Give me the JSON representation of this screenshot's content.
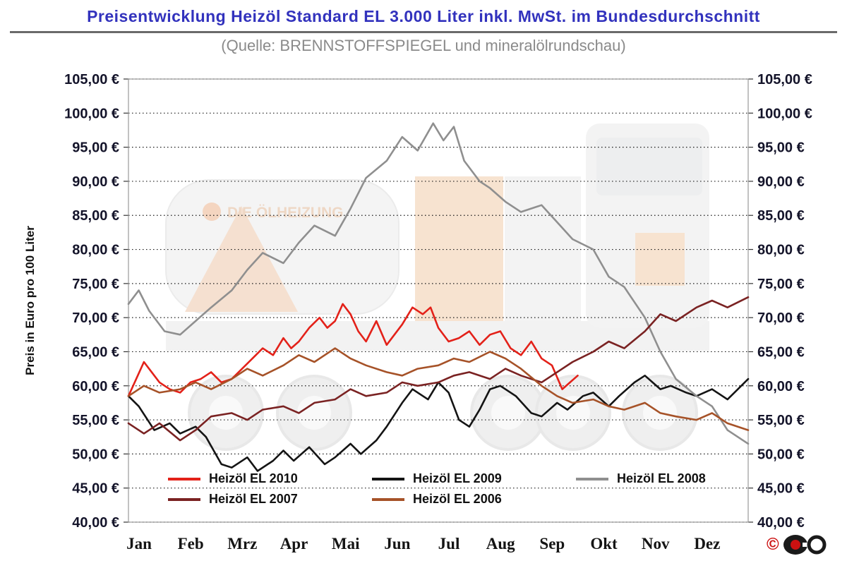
{
  "header": {
    "title": "Preisentwicklung Heizöl Standard EL 3.000 Liter inkl. MwSt. im Bundesdurchschnitt",
    "subtitle": "(Quelle: BRENNSTOFFSPIEGEL und mineralölrundschau)"
  },
  "watermark": {
    "text": "DIE ÖLHEIZUNG"
  },
  "chart_data": {
    "type": "line",
    "title": "Preisentwicklung Heizöl Standard EL 3.000 Liter inkl. MwSt. im Bundesdurchschnitt",
    "xlabel": "",
    "ylabel": "Preis in Euro pro 100 Liter",
    "ylim": [
      40,
      105
    ],
    "grid": "horizontal-dotted",
    "legend_position": "bottom-inside",
    "categories": [
      "Jan",
      "Feb",
      "Mrz",
      "Apr",
      "Mai",
      "Jun",
      "Jul",
      "Aug",
      "Sep",
      "Okt",
      "Nov",
      "Dez"
    ],
    "yticks": [
      40,
      45,
      50,
      55,
      60,
      65,
      70,
      75,
      80,
      85,
      90,
      95,
      100,
      105
    ],
    "ytick_labels": [
      "40,00 €",
      "45,00 €",
      "50,00 €",
      "55,00 €",
      "60,00 €",
      "65,00 €",
      "70,00 €",
      "75,00 €",
      "80,00 €",
      "85,00 €",
      "90,00 €",
      "95,00 €",
      "100,00 €",
      "105,00 €"
    ],
    "series": [
      {
        "name": "Heizöl EL 2010",
        "color": "#e32119",
        "x": [
          0,
          0.15,
          0.3,
          0.45,
          0.6,
          0.8,
          1.0,
          1.2,
          1.4,
          1.6,
          1.8,
          2.0,
          2.2,
          2.4,
          2.6,
          2.8,
          3.0,
          3.15,
          3.3,
          3.5,
          3.7,
          3.85,
          4.0,
          4.15,
          4.3,
          4.45,
          4.6,
          4.8,
          5.0,
          5.15,
          5.3,
          5.5,
          5.7,
          5.85,
          6.0,
          6.2,
          6.4,
          6.6,
          6.8,
          7.0,
          7.2,
          7.4,
          7.6,
          7.8,
          8.0,
          8.2,
          8.4,
          8.55,
          8.7
        ],
        "values": [
          58.5,
          61,
          63.5,
          62,
          60.5,
          59.5,
          59,
          60.5,
          61,
          62,
          60.5,
          61,
          62.5,
          64,
          65.5,
          64.5,
          67,
          65.5,
          66.5,
          68.5,
          70,
          68.5,
          69.5,
          72,
          70.5,
          68,
          66.5,
          69.5,
          66,
          67.5,
          69,
          71.5,
          70.5,
          71.5,
          68.5,
          66.5,
          67,
          68,
          66,
          67.5,
          68,
          65.5,
          64.5,
          66.5,
          64,
          63,
          59.5,
          60.5,
          61.5
        ]
      },
      {
        "name": "Heizöl EL 2009",
        "color": "#141414",
        "x": [
          0,
          0.2,
          0.5,
          0.8,
          1.0,
          1.3,
          1.5,
          1.8,
          2.0,
          2.3,
          2.5,
          2.8,
          3.0,
          3.2,
          3.5,
          3.8,
          4.0,
          4.3,
          4.5,
          4.8,
          5.0,
          5.3,
          5.5,
          5.8,
          6.0,
          6.2,
          6.4,
          6.6,
          6.8,
          7.0,
          7.2,
          7.5,
          7.8,
          8.0,
          8.3,
          8.5,
          8.8,
          9.0,
          9.3,
          9.5,
          9.8,
          10.0,
          10.3,
          10.5,
          10.8,
          11.0,
          11.3,
          11.6,
          11.8,
          12.0
        ],
        "values": [
          58.5,
          57,
          53.5,
          54.5,
          53,
          54,
          52.5,
          48.5,
          48,
          49.5,
          47.5,
          49,
          50.5,
          49,
          51,
          48.5,
          49.5,
          51.5,
          50,
          52,
          54,
          57.5,
          59.5,
          58,
          60.5,
          59,
          55,
          54,
          56.5,
          59.5,
          60,
          58.5,
          56,
          55.5,
          57.5,
          56.5,
          58.5,
          59,
          57,
          58.5,
          60.5,
          61.5,
          59.5,
          60,
          59,
          58.5,
          59.5,
          58,
          59.5,
          61
        ]
      },
      {
        "name": "Heizöl EL 2008",
        "color": "#8f8f8f",
        "x": [
          0,
          0.2,
          0.4,
          0.7,
          1.0,
          1.3,
          1.6,
          2.0,
          2.3,
          2.6,
          3.0,
          3.3,
          3.6,
          4.0,
          4.3,
          4.6,
          5.0,
          5.3,
          5.6,
          5.9,
          6.1,
          6.3,
          6.5,
          6.8,
          7.0,
          7.3,
          7.6,
          8.0,
          8.3,
          8.6,
          9.0,
          9.3,
          9.6,
          10.0,
          10.3,
          10.6,
          11.0,
          11.3,
          11.6,
          12.0
        ],
        "values": [
          72,
          74,
          71,
          68,
          67.5,
          69.5,
          71.5,
          74,
          77,
          79.5,
          78,
          81,
          83.5,
          82,
          86,
          90.5,
          93,
          96.5,
          94.5,
          98.5,
          96,
          98,
          93,
          90,
          89,
          87,
          85.5,
          86.5,
          84,
          81.5,
          80,
          76,
          74.5,
          70,
          65,
          61,
          58.5,
          57,
          53.5,
          51.5
        ]
      },
      {
        "name": "Heizöl EL 2007",
        "color": "#7a2222",
        "x": [
          0,
          0.3,
          0.6,
          1.0,
          1.3,
          1.6,
          2.0,
          2.3,
          2.6,
          3.0,
          3.3,
          3.6,
          4.0,
          4.3,
          4.6,
          5.0,
          5.3,
          5.6,
          6.0,
          6.3,
          6.6,
          7.0,
          7.3,
          7.6,
          8.0,
          8.3,
          8.6,
          9.0,
          9.3,
          9.6,
          10.0,
          10.3,
          10.6,
          11.0,
          11.3,
          11.6,
          12.0
        ],
        "values": [
          54.5,
          53,
          54.5,
          52,
          53.5,
          55.5,
          56,
          55,
          56.5,
          57,
          56,
          57.5,
          58,
          59.5,
          58.5,
          59,
          60.5,
          60,
          60.5,
          61.5,
          62,
          61,
          62.5,
          61.5,
          60.5,
          62,
          63.5,
          65,
          66.5,
          65.5,
          68,
          70.5,
          69.5,
          71.5,
          72.5,
          71.5,
          73
        ]
      },
      {
        "name": "Heizöl EL 2006",
        "color": "#a65228",
        "x": [
          0,
          0.3,
          0.6,
          1.0,
          1.3,
          1.6,
          2.0,
          2.3,
          2.6,
          3.0,
          3.3,
          3.6,
          4.0,
          4.3,
          4.6,
          5.0,
          5.3,
          5.6,
          6.0,
          6.3,
          6.6,
          7.0,
          7.3,
          7.6,
          8.0,
          8.3,
          8.6,
          9.0,
          9.3,
          9.6,
          10.0,
          10.3,
          10.6,
          11.0,
          11.3,
          11.6,
          12.0
        ],
        "values": [
          58.5,
          60,
          59,
          59.5,
          60.5,
          59.5,
          61,
          62.5,
          61.5,
          63,
          64.5,
          63.5,
          65.5,
          64,
          63,
          62,
          61.5,
          62.5,
          63,
          64,
          63.5,
          65,
          64,
          62.5,
          60,
          58.5,
          57.5,
          58,
          57,
          56.5,
          57.5,
          56,
          55.5,
          55,
          56,
          54.5,
          53.5
        ]
      }
    ]
  }
}
